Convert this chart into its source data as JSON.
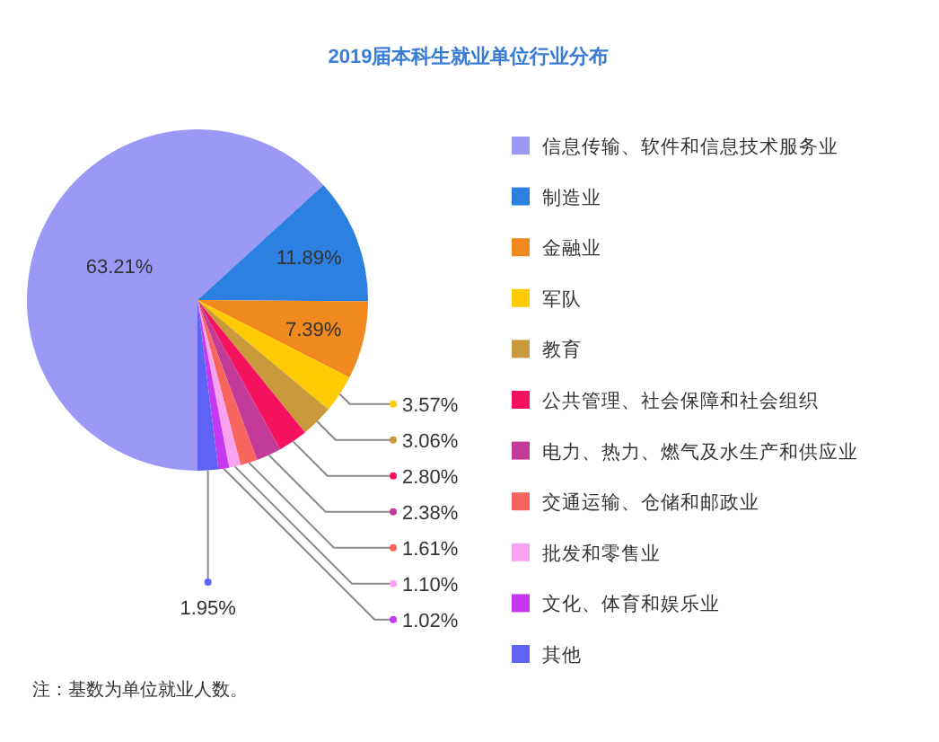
{
  "chart_data": {
    "type": "pie",
    "title": "2019届本科生就业单位行业分布",
    "categories": [
      "信息传输、软件和信息技术服务业",
      "制造业",
      "金融业",
      "军队",
      "教育",
      "公共管理、社会保障和社会组织",
      "电力、热力、燃气及水生产和供应业",
      "交通运输、仓储和邮政业",
      "批发和零售业",
      "文化、体育和娱乐业",
      "其他"
    ],
    "values": [
      63.21,
      11.89,
      7.39,
      3.57,
      3.06,
      2.8,
      2.38,
      1.61,
      1.1,
      1.02,
      1.95
    ],
    "value_labels": [
      "63.21%",
      "11.89%",
      "7.39%",
      "3.57%",
      "3.06%",
      "2.80%",
      "2.38%",
      "1.61%",
      "1.10%",
      "1.02%",
      "1.95%"
    ],
    "colors": [
      "#9b98f6",
      "#2b80e0",
      "#f08a1e",
      "#ffcb05",
      "#c99a3c",
      "#f5135f",
      "#c23b98",
      "#f7665e",
      "#f7a3f2",
      "#c739f0",
      "#5f63f6"
    ],
    "legend": "right",
    "annotations": [
      "注：基数为单位就业人数。"
    ]
  }
}
